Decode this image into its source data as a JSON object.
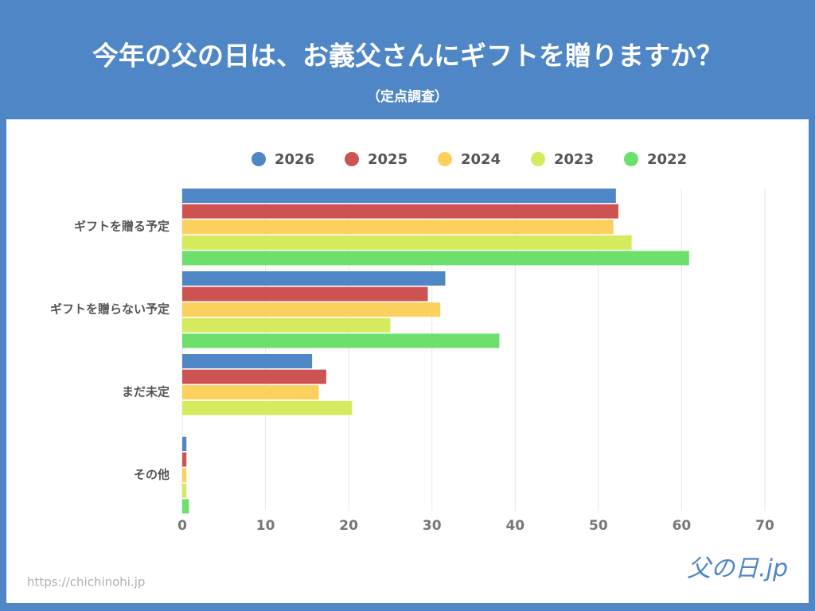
{
  "chart_data": {
    "type": "bar",
    "orientation": "horizontal",
    "title": "今年の父の日は、お義父さんにギフトを贈りますか？",
    "subtitle": "（定点調査）",
    "categories": [
      "ギフトを贈る予定",
      "ギフトを贈らない予定",
      "まだ未定",
      "その他"
    ],
    "series": [
      {
        "name": "2026",
        "color": "#4f86c6",
        "values": [
          52.1,
          31.6,
          15.6,
          0.5
        ]
      },
      {
        "name": "2025",
        "color": "#cd5353",
        "values": [
          52.4,
          29.5,
          17.3,
          0.5
        ]
      },
      {
        "name": "2024",
        "color": "#fcd05c",
        "values": [
          51.8,
          31.0,
          16.4,
          0.5
        ]
      },
      {
        "name": "2023",
        "color": "#d6ea5e",
        "values": [
          54.0,
          25.0,
          20.4,
          0.5
        ]
      },
      {
        "name": "2022",
        "color": "#6ce06a",
        "values": [
          60.9,
          38.1,
          null,
          0.8
        ]
      }
    ],
    "xlim": [
      0,
      70
    ],
    "xticks": [
      0,
      10,
      20,
      30,
      40,
      50,
      60,
      70
    ],
    "grid": true,
    "legend": "top"
  },
  "footer": {
    "url": "https://chichinohi.jp",
    "logo": "父の日.jp"
  }
}
